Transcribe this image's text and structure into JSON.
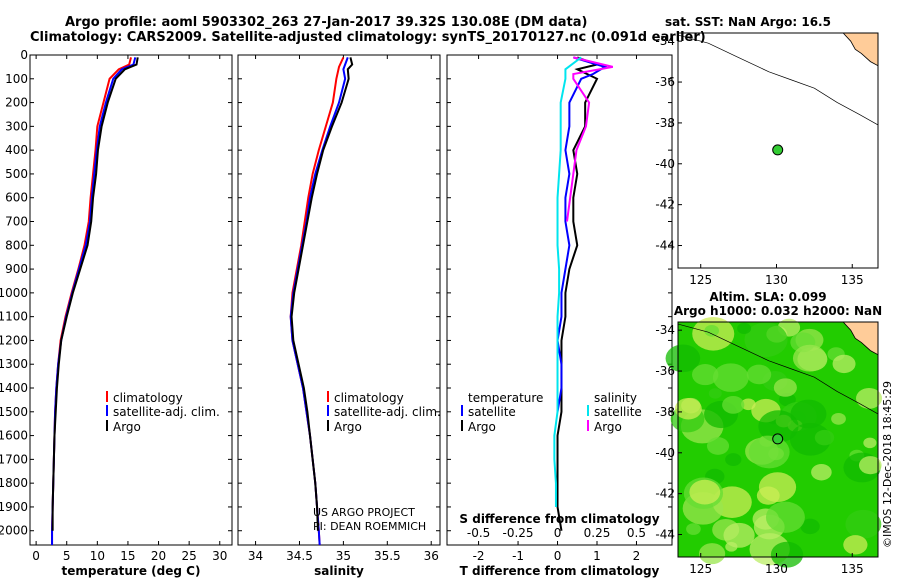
{
  "header": {
    "title_line1": "Argo profile: aoml 5903302_263 27-Jan-2017 39.32S 130.08E (DM data)",
    "title_line2": "Climatology: CARS2009. Satellite-adjusted climatology: synTS_20170127.nc (0.091d earlier)"
  },
  "map_top": {
    "label": "sat. SST: NaN Argo: 16.5"
  },
  "map_bottom": {
    "label_line1": "Altim. SLA: 0.099",
    "label_line2": "Argo h1000: 0.032 h2000: NaN"
  },
  "credits": {
    "project": "US ARGO PROJECT",
    "pi": "PI: DEAN ROEMMICH",
    "stamp": "©IMOS 12-Dec-2018 18:45:29"
  },
  "legend": {
    "climatology": "climatology",
    "satellite": "satellite-adj. clim.",
    "argo": "Argo",
    "diff_temperature": "temperature",
    "diff_salinity": "salinity",
    "diff_satellite": "satellite",
    "diff_argo": "Argo"
  },
  "colors": {
    "climatology": "#ff0000",
    "satellite": "#0000ff",
    "argo": "#000000",
    "diff_temperature": "#000000",
    "diff_temperature_sat": "#0000ff",
    "diff_salinity": "#ff00ff",
    "diff_salinity_sat": "#00e5ee",
    "land": "#ffcc99",
    "dot": "#33cc33"
  },
  "chart_data": [
    {
      "type": "line",
      "xlabel": "temperature (deg C)",
      "xlim": [
        -1,
        32
      ],
      "ylim": [
        2060,
        0
      ],
      "xticks": [
        0,
        5,
        10,
        15,
        20,
        25,
        30
      ],
      "yticks": [
        0,
        100,
        200,
        300,
        400,
        500,
        600,
        700,
        800,
        900,
        1000,
        1100,
        1200,
        1300,
        1400,
        1500,
        1600,
        1700,
        1800,
        1900,
        2000
      ],
      "series": [
        {
          "name": "climatology",
          "points": [
            [
              15.5,
              10
            ],
            [
              15.2,
              40
            ],
            [
              13.5,
              60
            ],
            [
              12.0,
              100
            ],
            [
              11.0,
              200
            ],
            [
              10.0,
              300
            ],
            [
              9.7,
              400
            ],
            [
              9.3,
              500
            ],
            [
              8.9,
              600
            ],
            [
              8.6,
              700
            ],
            [
              7.9,
              800
            ],
            [
              6.9,
              900
            ],
            [
              5.8,
              1000
            ],
            [
              4.8,
              1100
            ],
            [
              4.0,
              1200
            ],
            [
              3.6,
              1300
            ],
            [
              3.3,
              1400
            ],
            [
              3.1,
              1500
            ],
            [
              3.0,
              1600
            ],
            [
              2.9,
              1700
            ],
            [
              2.8,
              1800
            ],
            [
              2.7,
              1900
            ],
            [
              2.6,
              2000
            ],
            [
              2.6,
              2060
            ]
          ]
        },
        {
          "name": "satellite-adj. clim.",
          "points": [
            [
              16.2,
              10
            ],
            [
              15.9,
              40
            ],
            [
              14.0,
              60
            ],
            [
              12.6,
              100
            ],
            [
              11.4,
              200
            ],
            [
              10.4,
              300
            ],
            [
              9.9,
              400
            ],
            [
              9.5,
              500
            ],
            [
              9.1,
              600
            ],
            [
              8.8,
              700
            ],
            [
              8.1,
              800
            ],
            [
              7.0,
              900
            ],
            [
              5.9,
              1000
            ],
            [
              4.9,
              1100
            ],
            [
              4.1,
              1200
            ],
            [
              3.6,
              1300
            ],
            [
              3.3,
              1400
            ],
            [
              3.1,
              1500
            ],
            [
              3.0,
              1600
            ],
            [
              2.9,
              1700
            ],
            [
              2.8,
              1800
            ],
            [
              2.7,
              1900
            ],
            [
              2.6,
              2000
            ],
            [
              2.6,
              2060
            ]
          ]
        },
        {
          "name": "Argo",
          "points": [
            [
              16.6,
              10
            ],
            [
              16.4,
              40
            ],
            [
              14.5,
              60
            ],
            [
              13.0,
              100
            ],
            [
              11.7,
              200
            ],
            [
              10.7,
              300
            ],
            [
              10.1,
              400
            ],
            [
              9.8,
              500
            ],
            [
              9.3,
              600
            ],
            [
              9.0,
              700
            ],
            [
              8.4,
              800
            ],
            [
              7.2,
              900
            ],
            [
              6.0,
              1000
            ],
            [
              5.0,
              1100
            ],
            [
              4.1,
              1200
            ],
            [
              3.7,
              1300
            ],
            [
              3.4,
              1400
            ],
            [
              3.2,
              1500
            ],
            [
              3.0,
              1600
            ],
            [
              2.9,
              1700
            ],
            [
              2.8,
              1800
            ],
            [
              2.7,
              1900
            ],
            [
              2.7,
              2000
            ]
          ]
        }
      ]
    },
    {
      "type": "line",
      "xlabel": "salinity",
      "xlim": [
        33.8,
        36.1
      ],
      "ylim": [
        2060,
        0
      ],
      "xticks": [
        34,
        34.5,
        35,
        35.5,
        36
      ],
      "series": [
        {
          "name": "climatology",
          "points": [
            [
              35.0,
              10
            ],
            [
              34.95,
              50
            ],
            [
              34.92,
              100
            ],
            [
              34.88,
              200
            ],
            [
              34.8,
              300
            ],
            [
              34.72,
              400
            ],
            [
              34.65,
              500
            ],
            [
              34.6,
              600
            ],
            [
              34.56,
              700
            ],
            [
              34.52,
              800
            ],
            [
              34.47,
              900
            ],
            [
              34.42,
              1000
            ],
            [
              34.4,
              1100
            ],
            [
              34.42,
              1200
            ],
            [
              34.48,
              1300
            ],
            [
              34.54,
              1400
            ],
            [
              34.58,
              1500
            ],
            [
              34.62,
              1600
            ],
            [
              34.65,
              1700
            ],
            [
              34.68,
              1800
            ],
            [
              34.7,
              1900
            ],
            [
              34.72,
              2000
            ],
            [
              34.73,
              2060
            ]
          ]
        },
        {
          "name": "satellite-adj. clim.",
          "points": [
            [
              35.05,
              10
            ],
            [
              35.0,
              60
            ],
            [
              35.02,
              100
            ],
            [
              34.95,
              200
            ],
            [
              34.85,
              300
            ],
            [
              34.76,
              400
            ],
            [
              34.68,
              500
            ],
            [
              34.62,
              600
            ],
            [
              34.58,
              700
            ],
            [
              34.53,
              800
            ],
            [
              34.48,
              900
            ],
            [
              34.43,
              1000
            ],
            [
              34.4,
              1100
            ],
            [
              34.42,
              1200
            ],
            [
              34.48,
              1300
            ],
            [
              34.54,
              1400
            ],
            [
              34.58,
              1500
            ],
            [
              34.62,
              1600
            ],
            [
              34.65,
              1700
            ],
            [
              34.68,
              1800
            ],
            [
              34.7,
              1900
            ],
            [
              34.72,
              2000
            ],
            [
              34.73,
              2060
            ]
          ]
        },
        {
          "name": "Argo",
          "points": [
            [
              35.08,
              10
            ],
            [
              35.1,
              40
            ],
            [
              35.05,
              60
            ],
            [
              35.06,
              100
            ],
            [
              34.98,
              200
            ],
            [
              34.87,
              300
            ],
            [
              34.77,
              400
            ],
            [
              34.7,
              500
            ],
            [
              34.64,
              600
            ],
            [
              34.59,
              700
            ],
            [
              34.54,
              800
            ],
            [
              34.49,
              900
            ],
            [
              34.44,
              1000
            ],
            [
              34.41,
              1100
            ],
            [
              34.43,
              1200
            ],
            [
              34.49,
              1300
            ],
            [
              34.55,
              1400
            ],
            [
              34.59,
              1500
            ],
            [
              34.62,
              1600
            ],
            [
              34.65,
              1700
            ],
            [
              34.68,
              1800
            ],
            [
              34.7,
              1900
            ],
            [
              34.71,
              2000
            ]
          ]
        }
      ]
    },
    {
      "type": "line",
      "xlabel": "T difference from climatology",
      "xlabel_top": "S difference from climatology",
      "xlim": [
        -2.8,
        2.9
      ],
      "ylim": [
        2060,
        0
      ],
      "xticks": [
        -2,
        -1,
        0,
        1,
        2
      ],
      "xticks_top": [
        -0.5,
        -0.25,
        0,
        0.25,
        0.5
      ],
      "series": [
        {
          "name": "temperature",
          "points": [
            [
              0.5,
              10
            ],
            [
              1.0,
              40
            ],
            [
              0.5,
              60
            ],
            [
              1.0,
              100
            ],
            [
              0.7,
              200
            ],
            [
              0.7,
              300
            ],
            [
              0.4,
              400
            ],
            [
              0.5,
              500
            ],
            [
              0.4,
              600
            ],
            [
              0.4,
              700
            ],
            [
              0.5,
              800
            ],
            [
              0.3,
              900
            ],
            [
              0.2,
              1000
            ],
            [
              0.2,
              1100
            ],
            [
              0.1,
              1200
            ],
            [
              0.1,
              1300
            ],
            [
              0.1,
              1400
            ],
            [
              0.1,
              1500
            ],
            [
              0.0,
              1600
            ],
            [
              0.0,
              1700
            ],
            [
              0.0,
              1800
            ],
            [
              0.0,
              1900
            ],
            [
              0.1,
              2000
            ]
          ]
        },
        {
          "name": "temperature satellite",
          "points": [
            [
              0.4,
              10
            ],
            [
              1.2,
              50
            ],
            [
              0.9,
              80
            ],
            [
              0.6,
              100
            ],
            [
              0.3,
              200
            ],
            [
              0.3,
              300
            ],
            [
              0.2,
              400
            ],
            [
              0.3,
              500
            ],
            [
              0.2,
              600
            ],
            [
              0.2,
              700
            ],
            [
              0.3,
              800
            ],
            [
              0.2,
              900
            ],
            [
              0.1,
              1000
            ],
            [
              0.1,
              1100
            ],
            [
              0.0,
              1200
            ],
            [
              0.1,
              1300
            ],
            [
              0.1,
              1400
            ],
            [
              0.0,
              1500
            ]
          ]
        },
        {
          "name": "salinity",
          "points": [
            [
              0.1,
              10
            ],
            [
              0.35,
              50
            ],
            [
              0.1,
              80
            ],
            [
              0.1,
              100
            ],
            [
              0.2,
              200
            ],
            [
              0.18,
              300
            ],
            [
              0.12,
              400
            ],
            [
              0.1,
              500
            ],
            [
              0.08,
              600
            ],
            [
              0.06,
              700
            ]
          ]
        },
        {
          "name": "salinity satellite",
          "points": [
            [
              0.15,
              10
            ],
            [
              0.05,
              60
            ],
            [
              0.05,
              100
            ],
            [
              0.02,
              200
            ],
            [
              0.02,
              300
            ],
            [
              0.02,
              400
            ],
            [
              0.01,
              500
            ],
            [
              0.0,
              600
            ],
            [
              0.0,
              700
            ],
            [
              0.0,
              800
            ],
            [
              0.01,
              900
            ],
            [
              0.01,
              1000
            ],
            [
              0.0,
              1100
            ],
            [
              0.0,
              1200
            ],
            [
              0.0,
              1300
            ],
            [
              0.0,
              1400
            ],
            [
              0.0,
              1500
            ],
            [
              -0.02,
              1600
            ],
            [
              -0.02,
              1700
            ],
            [
              -0.01,
              1800
            ],
            [
              -0.01,
              1900
            ]
          ]
        }
      ]
    }
  ],
  "maps": {
    "xticks": [
      125,
      130,
      135
    ],
    "yticks": [
      -34,
      -36,
      -38,
      -40,
      -42,
      -44
    ],
    "xlim": [
      123.5,
      136.7
    ],
    "ylim": [
      -45.1,
      -33.6
    ],
    "argo_position": [
      130.08,
      -39.32
    ]
  }
}
